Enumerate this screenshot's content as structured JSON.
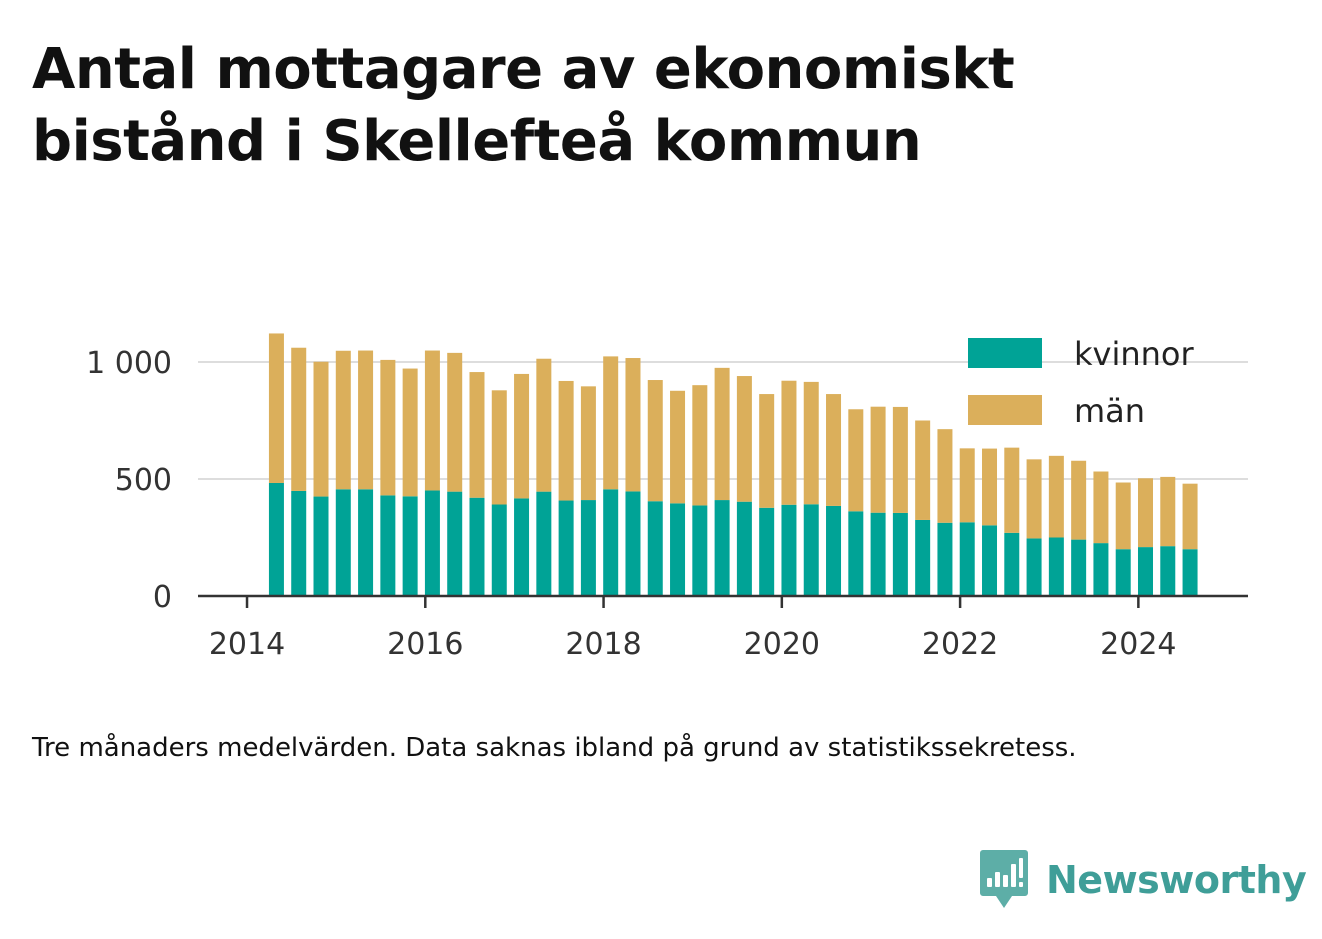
{
  "title": "Antal mottagare av ekonomiskt bistånd i Skellefteå kommun",
  "note": "Tre månaders medelvärden. Data saknas ibland på grund av statistikssekretess.",
  "brand": {
    "name": "Newsworthy",
    "icon": "newsworthy-logo-icon",
    "color": "#3f9e98"
  },
  "chart_data": {
    "type": "bar",
    "stacked": true,
    "x": [
      2014.33,
      2014.58,
      2014.83,
      2015.08,
      2015.33,
      2015.58,
      2015.83,
      2016.08,
      2016.33,
      2016.58,
      2016.83,
      2017.08,
      2017.33,
      2017.58,
      2017.83,
      2018.08,
      2018.33,
      2018.58,
      2018.83,
      2019.08,
      2019.33,
      2019.58,
      2019.83,
      2020.08,
      2020.33,
      2020.58,
      2020.83,
      2021.08,
      2021.33,
      2021.58,
      2021.83,
      2022.08,
      2022.33,
      2022.58,
      2022.83,
      2023.08,
      2023.33,
      2023.58,
      2023.83,
      2024.08,
      2024.33,
      2024.58
    ],
    "series": [
      {
        "name": "kvinnor",
        "color": "#00a396",
        "values": [
          483,
          449,
          425,
          456,
          456,
          430,
          426,
          451,
          446,
          420,
          391,
          417,
          446,
          408,
          410,
          456,
          447,
          405,
          396,
          387,
          410,
          403,
          377,
          390,
          392,
          385,
          362,
          356,
          355,
          325,
          313,
          315,
          302,
          270,
          246,
          250,
          241,
          226,
          200,
          209,
          213,
          200
        ]
      },
      {
        "name": "män",
        "color": "#dbaf5b",
        "values": [
          639,
          612,
          576,
          592,
          593,
          579,
          546,
          598,
          593,
          537,
          488,
          532,
          568,
          511,
          486,
          568,
          570,
          518,
          481,
          514,
          565,
          537,
          486,
          530,
          523,
          478,
          436,
          453,
          453,
          425,
          400,
          316,
          328,
          364,
          338,
          349,
          337,
          306,
          285,
          294,
          296,
          280
        ]
      }
    ],
    "y_ticks": [
      "0",
      "500",
      "1 000"
    ],
    "y_tick_values": [
      0,
      500,
      1000
    ],
    "x_ticks": [
      "2014",
      "2016",
      "2018",
      "2020",
      "2022",
      "2024"
    ],
    "x_tick_values": [
      2014,
      2016,
      2018,
      2020,
      2022,
      2024
    ],
    "xlim": [
      2013.45,
      2025.23
    ],
    "ylim": [
      0,
      1000
    ],
    "grid": "horizontal",
    "legend_position": "top-right"
  }
}
